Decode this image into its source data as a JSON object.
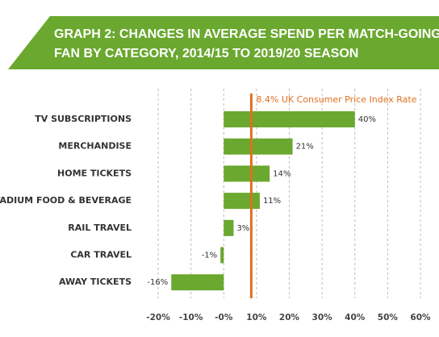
{
  "chart_data": {
    "type": "hbar",
    "title": [
      "GRAPH 2: CHANGES IN AVERAGE SPEND PER MATCH-GOING",
      "FAN BY CATEGORY, 2014/15 TO 2019/20 SEASON"
    ],
    "categories": [
      "TV SUBSCRIPTIONS",
      "MERCHANDISE",
      "HOME TICKETS",
      "IN-STADIUM FOOD & BEVERAGE",
      "RAIL TRAVEL",
      "CAR TRAVEL",
      "AWAY TICKETS"
    ],
    "values": [
      40,
      21,
      14,
      11,
      3,
      -1,
      -16
    ],
    "value_labels": [
      "40%",
      "21%",
      "14%",
      "11%",
      "3%",
      "-1%",
      "-16%"
    ],
    "color": "#6aa82f",
    "xlim": [
      -20,
      60
    ],
    "xticks": [
      {
        "value": -20,
        "label": "-20%"
      },
      {
        "value": -10,
        "label": "-10%"
      },
      {
        "value": 0,
        "label": "-0%"
      },
      {
        "value": 10,
        "label": "10%"
      },
      {
        "value": 20,
        "label": "20%"
      },
      {
        "value": 30,
        "label": "30%"
      },
      {
        "value": 40,
        "label": "40%"
      },
      {
        "value": 50,
        "label": "50%"
      },
      {
        "value": 60,
        "label": "60%"
      }
    ],
    "grid": true,
    "reference_line": {
      "value": 8.4,
      "label": "8.4% UK Consumer Price Index Rate",
      "color": "#e0701e"
    }
  }
}
